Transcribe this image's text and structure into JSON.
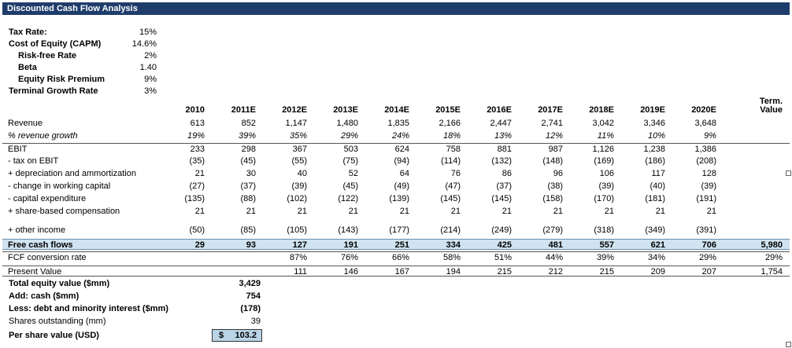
{
  "title": "Discounted Cash Flow Analysis",
  "assumptions": [
    {
      "label": "Tax Rate:",
      "value": "15%"
    },
    {
      "label": "Cost of Equity (CAPM)",
      "value": "14.6%"
    },
    {
      "label": "Risk-free Rate",
      "value": "2%"
    },
    {
      "label": "Beta",
      "value": "1.40"
    },
    {
      "label": "Equity Risk Premium",
      "value": "9%"
    },
    {
      "label": "Terminal Growth Rate",
      "value": "3%"
    }
  ],
  "columns": [
    "2010",
    "2011E",
    "2012E",
    "2013E",
    "2014E",
    "2015E",
    "2016E",
    "2017E",
    "2018E",
    "2019E",
    "2020E"
  ],
  "terminal_header_1": "Term.",
  "terminal_header_2": "Value",
  "rows": [
    {
      "label": "Revenue",
      "cells": [
        "613",
        "852",
        "1,147",
        "1,480",
        "1,835",
        "2,166",
        "2,447",
        "2,741",
        "3,042",
        "3,346",
        "3,648"
      ],
      "term": ""
    },
    {
      "label": "% revenue growth",
      "cells": [
        "19%",
        "39%",
        "35%",
        "29%",
        "24%",
        "18%",
        "13%",
        "12%",
        "11%",
        "10%",
        "9%"
      ],
      "term": ""
    },
    {
      "label": "EBIT",
      "cells": [
        "233",
        "298",
        "367",
        "503",
        "624",
        "758",
        "881",
        "987",
        "1,126",
        "1,238",
        "1,386"
      ],
      "term": ""
    },
    {
      "label": " - tax on EBIT",
      "cells": [
        "(35)",
        "(45)",
        "(55)",
        "(75)",
        "(94)",
        "(114)",
        "(132)",
        "(148)",
        "(169)",
        "(186)",
        "(208)"
      ],
      "term": ""
    },
    {
      "label": " + depreciation and ammortization",
      "cells": [
        "21",
        "30",
        "40",
        "52",
        "64",
        "76",
        "86",
        "96",
        "106",
        "117",
        "128"
      ],
      "term": ""
    },
    {
      "label": " - change in working capital",
      "cells": [
        "(27)",
        "(37)",
        "(39)",
        "(45)",
        "(49)",
        "(47)",
        "(37)",
        "(38)",
        "(39)",
        "(40)",
        "(39)"
      ],
      "term": ""
    },
    {
      "label": " - capital expenditure",
      "cells": [
        "(135)",
        "(88)",
        "(102)",
        "(122)",
        "(139)",
        "(145)",
        "(145)",
        "(158)",
        "(170)",
        "(181)",
        "(191)"
      ],
      "term": ""
    },
    {
      "label": " + share-based compensation",
      "cells": [
        "21",
        "21",
        "21",
        "21",
        "21",
        "21",
        "21",
        "21",
        "21",
        "21",
        "21"
      ],
      "term": ""
    },
    {
      "label": " + other income",
      "cells": [
        "(50)",
        "(85)",
        "(105)",
        "(143)",
        "(177)",
        "(214)",
        "(249)",
        "(279)",
        "(318)",
        "(349)",
        "(391)"
      ],
      "term": ""
    },
    {
      "label": "Free cash flows",
      "cells": [
        "29",
        "93",
        "127",
        "191",
        "251",
        "334",
        "425",
        "481",
        "557",
        "621",
        "706"
      ],
      "term": "5,980"
    },
    {
      "label": "FCF conversion rate",
      "cells": [
        "",
        "",
        "87%",
        "76%",
        "66%",
        "58%",
        "51%",
        "44%",
        "39%",
        "34%",
        "29%"
      ],
      "term": "29%"
    },
    {
      "label": "Present Value",
      "cells": [
        "",
        "",
        "111",
        "146",
        "167",
        "194",
        "215",
        "212",
        "215",
        "209",
        "207"
      ],
      "term": "1,754"
    }
  ],
  "valuation": [
    {
      "label": "Total equity value ($mm)",
      "value": "3,429"
    },
    {
      "label": "Add: cash ($mm)",
      "value": "754"
    },
    {
      "label": "Less: debt and minority interest ($mm)",
      "value": "(178)"
    },
    {
      "label": "Shares outstanding (mm)",
      "value": "39"
    },
    {
      "label": "Per share value (USD)",
      "currency": "$",
      "value": "103.2"
    }
  ]
}
